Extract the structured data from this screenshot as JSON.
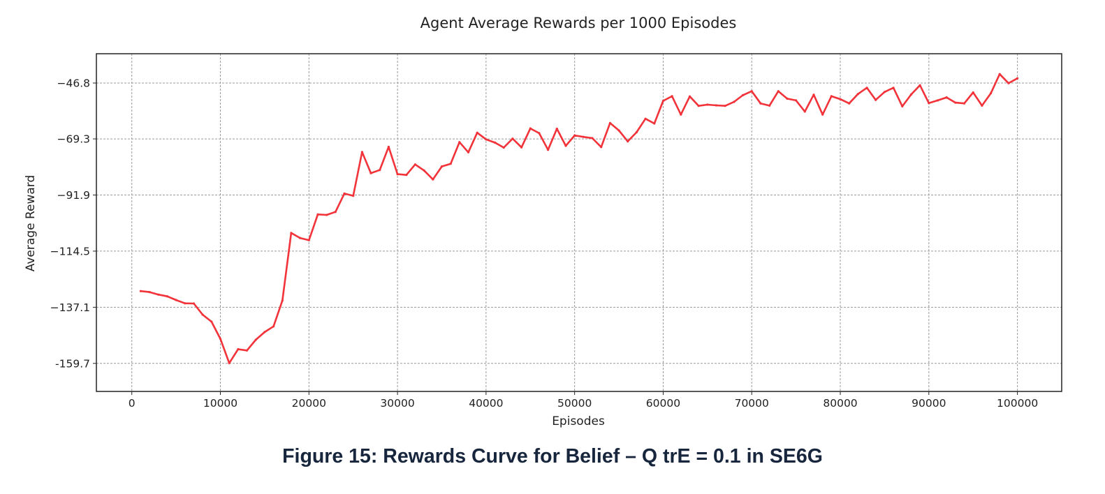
{
  "caption": "Figure 15: Rewards Curve for Belief – Q trE = 0.1 in SE6G",
  "chart_data": {
    "type": "line",
    "title": "Agent Average Rewards per 1000 Episodes",
    "xlabel": "Episodes",
    "ylabel": "Average Reward",
    "xlim": [
      -4000,
      105000
    ],
    "ylim": [
      -171,
      -35
    ],
    "x_ticks": [
      0,
      10000,
      20000,
      30000,
      40000,
      50000,
      60000,
      70000,
      80000,
      90000,
      100000
    ],
    "y_ticks": [
      -46.8,
      -69.3,
      -91.9,
      -114.5,
      -137.1,
      -159.7
    ],
    "y_tick_labels": [
      "−46.8",
      "−69.3",
      "−91.9",
      "−114.5",
      "−137.1",
      "-159.7"
    ],
    "grid": true,
    "series": [
      {
        "color": "#f2333a",
        "x": [
          1000,
          2000,
          3000,
          4000,
          5000,
          6000,
          7000,
          8000,
          9000,
          10000,
          11000,
          12000,
          13000,
          14000,
          15000,
          16000,
          17000,
          18000,
          19000,
          20000,
          21000,
          22000,
          23000,
          24000,
          25000,
          26000,
          27000,
          28000,
          29000,
          30000,
          31000,
          32000,
          33000,
          34000,
          35000,
          36000,
          37000,
          38000,
          39000,
          40000,
          41000,
          42000,
          43000,
          44000,
          45000,
          46000,
          47000,
          48000,
          49000,
          50000,
          51000,
          52000,
          53000,
          54000,
          55000,
          56000,
          57000,
          58000,
          59000,
          60000,
          61000,
          62000,
          63000,
          64000,
          65000,
          66000,
          67000,
          68000,
          69000,
          70000,
          71000,
          72000,
          73000,
          74000,
          75000,
          76000,
          77000,
          78000,
          79000,
          80000,
          81000,
          82000,
          83000,
          84000,
          85000,
          86000,
          87000,
          88000,
          89000,
          90000,
          91000,
          92000,
          93000,
          94000,
          95000,
          96000,
          97000,
          98000,
          99000,
          100000
        ],
        "y": [
          -130.6,
          -131.0,
          -132.0,
          -132.7,
          -134.2,
          -135.5,
          -135.6,
          -140.1,
          -142.9,
          -149.8,
          -159.6,
          -154.0,
          -154.5,
          -150.2,
          -147.1,
          -144.8,
          -134.4,
          -107.2,
          -109.2,
          -110.1,
          -99.7,
          -99.9,
          -98.7,
          -91.3,
          -92.2,
          -74.6,
          -83.1,
          -81.8,
          -72.5,
          -83.5,
          -83.8,
          -79.6,
          -82.0,
          -85.6,
          -80.4,
          -79.3,
          -70.6,
          -74.7,
          -66.8,
          -69.5,
          -70.8,
          -72.8,
          -69.2,
          -72.7,
          -65.1,
          -67.0,
          -73.7,
          -65.2,
          -72.1,
          -67.9,
          -68.5,
          -69.0,
          -72.6,
          -62.9,
          -65.9,
          -70.3,
          -66.6,
          -61.2,
          -63.1,
          -54.0,
          -52.1,
          -59.5,
          -52.2,
          -56.0,
          -55.5,
          -55.8,
          -56.0,
          -54.4,
          -51.7,
          -50.1,
          -55.0,
          -55.9,
          -50.1,
          -53.1,
          -53.8,
          -58.3,
          -51.5,
          -59.5,
          -52.1,
          -53.3,
          -55.0,
          -51.2,
          -48.7,
          -53.6,
          -50.4,
          -48.7,
          -56.2,
          -51.4,
          -47.7,
          -54.9,
          -53.8,
          -52.6,
          -54.7,
          -55.0,
          -50.6,
          -55.9,
          -50.9,
          -43.2,
          -46.9,
          -44.9
        ]
      }
    ]
  }
}
